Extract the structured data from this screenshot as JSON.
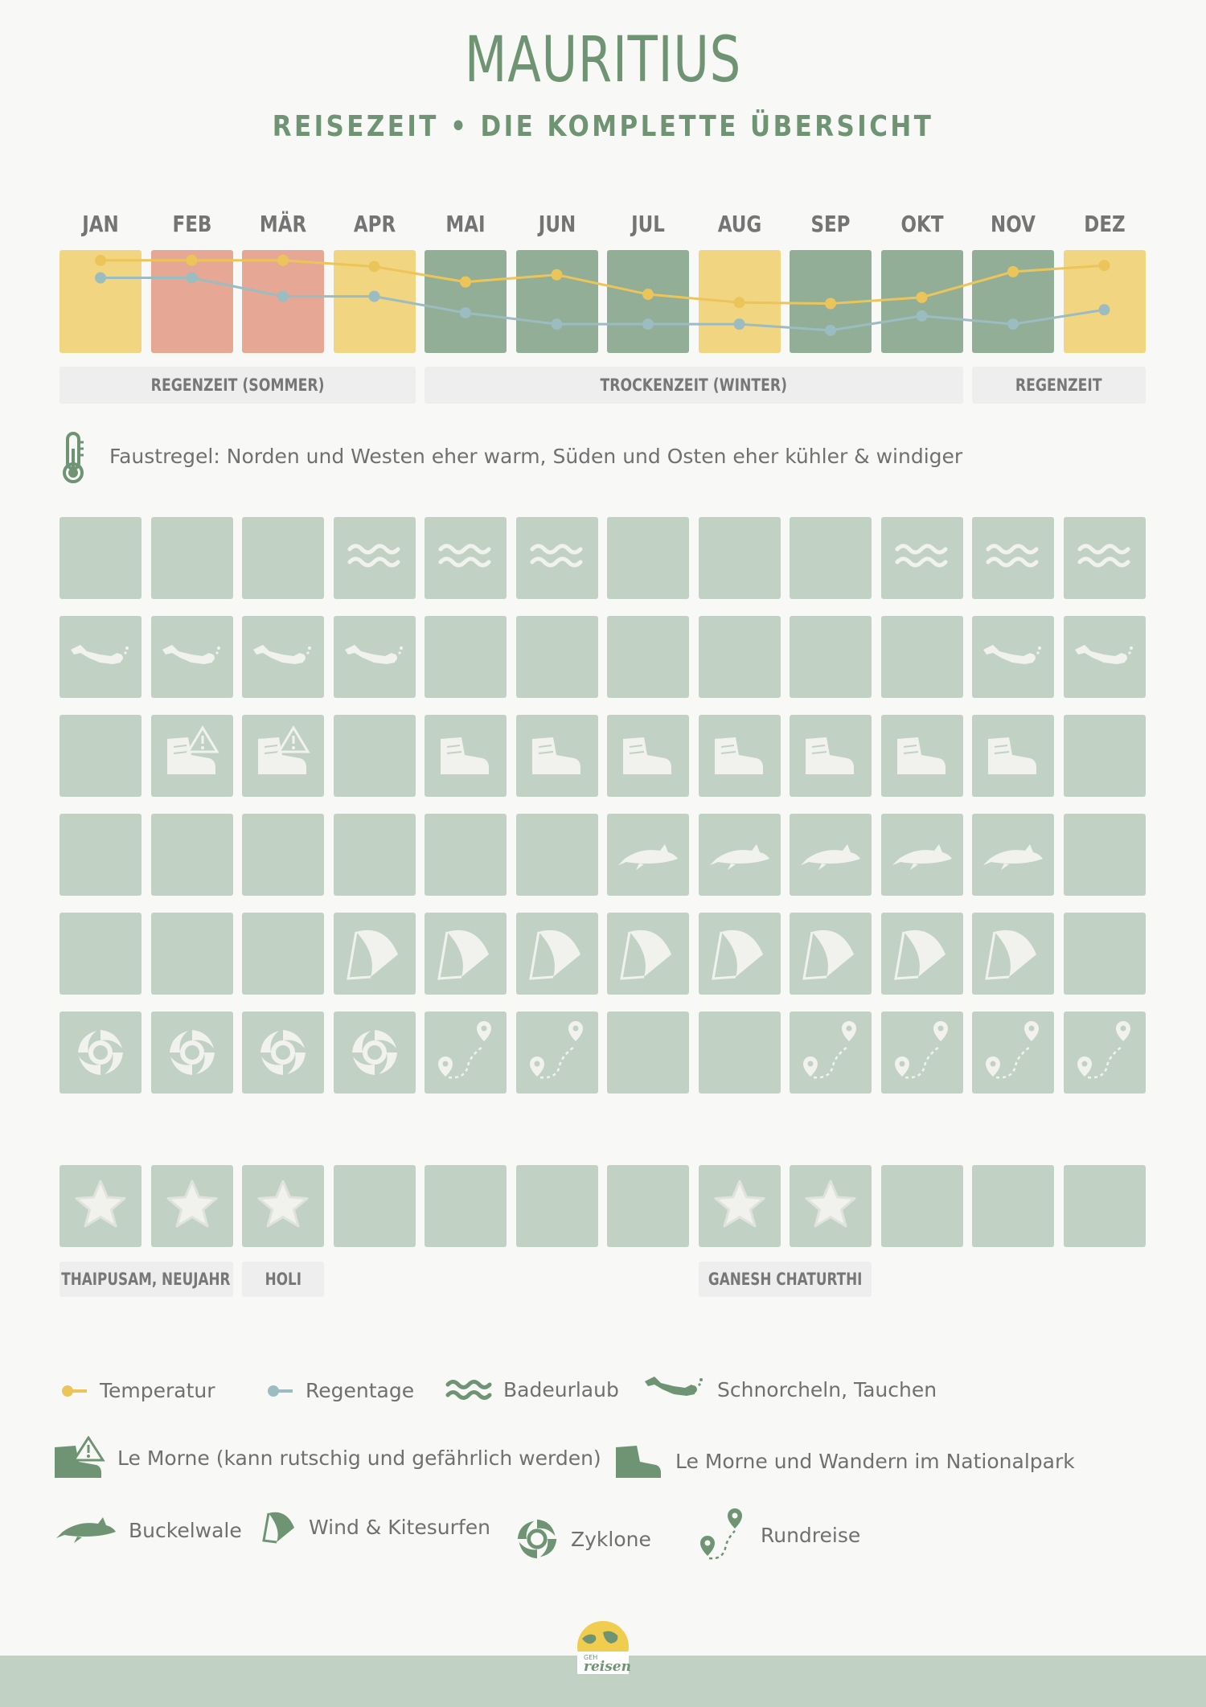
{
  "header": {
    "title": "MAURITIUS",
    "subtitle": "REISEZEIT • DIE KOMPLETTE ÜBERSICHT"
  },
  "colors": {
    "green_dark": "#92ae97",
    "yellow": "#f2d580",
    "salmon": "#e6a894",
    "cell_light": "#c1d2c5",
    "temp_line": "#ecc55a",
    "rain_line": "#9bbcc0",
    "icon_white": "#f1f2ee",
    "accent_green": "#6f9473"
  },
  "chart_data": {
    "type": "line",
    "title": "MAURITIUS",
    "categories": [
      "JAN",
      "FEB",
      "MÄR",
      "APR",
      "MAI",
      "JUN",
      "JUL",
      "AUG",
      "SEP",
      "OKT",
      "NOV",
      "DEZ"
    ],
    "cell_rating": [
      "yellow",
      "salmon",
      "salmon",
      "yellow",
      "green_dark",
      "green_dark",
      "green_dark",
      "yellow",
      "green_dark",
      "green_dark",
      "green_dark",
      "yellow"
    ],
    "series": [
      {
        "name": "Temperatur",
        "color": "temp_line",
        "values": [
          0.9,
          0.9,
          0.9,
          0.84,
          0.69,
          0.76,
          0.57,
          0.49,
          0.48,
          0.54,
          0.79,
          0.85
        ]
      },
      {
        "name": "Regentage",
        "color": "rain_line",
        "values": [
          0.73,
          0.73,
          0.55,
          0.55,
          0.39,
          0.28,
          0.28,
          0.28,
          0.22,
          0.36,
          0.28,
          0.42
        ]
      }
    ],
    "ylim": [
      0,
      1
    ],
    "seasons": [
      {
        "label": "REGENZEIT (SOMMER)",
        "start": 0,
        "end": 3
      },
      {
        "label": "TROCKENZEIT (WINTER)",
        "start": 4,
        "end": 9
      },
      {
        "label": "REGENZEIT",
        "start": 10,
        "end": 11
      }
    ],
    "activity_rows": [
      {
        "icon": "waves",
        "months": [
          0,
          0,
          0,
          1,
          1,
          1,
          0,
          0,
          0,
          1,
          1,
          1
        ]
      },
      {
        "icon": "diver",
        "months": [
          1,
          1,
          1,
          1,
          0,
          0,
          0,
          0,
          0,
          0,
          1,
          1
        ]
      },
      {
        "icon": "boot",
        "months": [
          0,
          2,
          2,
          0,
          1,
          1,
          1,
          1,
          1,
          1,
          1,
          0
        ]
      },
      {
        "icon": "whale",
        "months": [
          0,
          0,
          0,
          0,
          0,
          0,
          1,
          1,
          1,
          1,
          1,
          0
        ]
      },
      {
        "icon": "kite",
        "months": [
          0,
          0,
          0,
          1,
          1,
          1,
          1,
          1,
          1,
          1,
          1,
          0
        ]
      },
      {
        "icon": "cyclone_route",
        "months": [
          1,
          1,
          1,
          1,
          2,
          2,
          0,
          0,
          2,
          2,
          2,
          2
        ]
      },
      {
        "icon": "star",
        "months": [
          1,
          1,
          1,
          0,
          0,
          0,
          0,
          1,
          1,
          0,
          0,
          0
        ]
      }
    ],
    "holidays": [
      {
        "label": "THAIPUSAM, NEUJAHR",
        "start": 0,
        "end": 1
      },
      {
        "label": "HOLI",
        "start": 2,
        "end": 2
      },
      {
        "label": "GANESH CHATURTHI",
        "start": 7,
        "end": 8
      }
    ]
  },
  "rule": {
    "icon": "thermometer-icon",
    "text": "Faustregel: Norden und Westen eher warm, Süden und Osten eher kühler & windiger"
  },
  "legend": {
    "temperatur": "Temperatur",
    "regentage": "Regentage",
    "badeurlaub": "Badeurlaub",
    "schnorcheln": "Schnorcheln, Tauchen",
    "le_morne_warning": "Le Morne (kann rutschig und gefährlich werden)",
    "le_morne_hiking": "Le Morne und Wandern im Nationalpark",
    "buckelwale": "Buckelwale",
    "wind": "Wind & Kitesurfen",
    "zyklone": "Zyklone",
    "rundreise": "Rundreise"
  },
  "logo": {
    "small_text": "GEH",
    "brand": "reisen"
  }
}
